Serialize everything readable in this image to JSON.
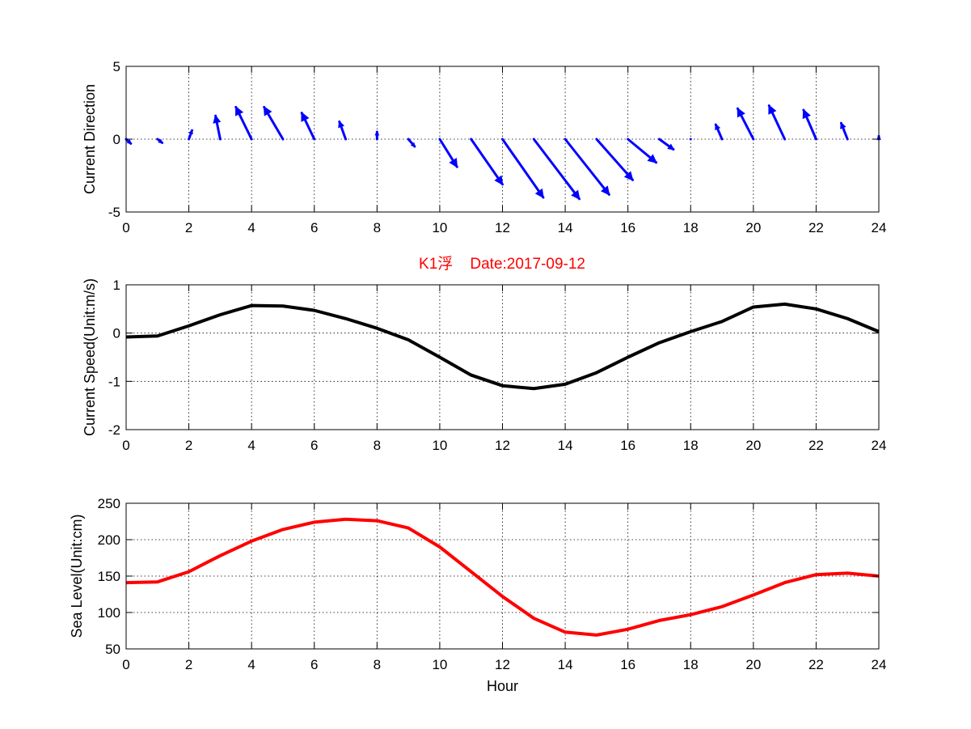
{
  "title": "K1浮    Date:2017-09-12",
  "title_color": "#ff0000",
  "chart_data": [
    {
      "type": "quiver",
      "ylabel": "Current Direction",
      "xlabel": "",
      "xlim": [
        0,
        24
      ],
      "ylim": [
        -5,
        5
      ],
      "xticks": [
        0,
        2,
        4,
        6,
        8,
        10,
        12,
        14,
        16,
        18,
        20,
        22,
        24
      ],
      "yticks": [
        -5,
        0,
        5
      ],
      "grid": true,
      "color": "#0000ff",
      "vectors": [
        {
          "x": 0,
          "u": 0.15,
          "v": -0.3
        },
        {
          "x": 1,
          "u": 0.15,
          "v": -0.25
        },
        {
          "x": 2,
          "u": 0.1,
          "v": 0.6
        },
        {
          "x": 3,
          "u": -0.15,
          "v": 1.6
        },
        {
          "x": 4,
          "u": -0.5,
          "v": 2.2
        },
        {
          "x": 5,
          "u": -0.6,
          "v": 2.2
        },
        {
          "x": 6,
          "u": -0.4,
          "v": 1.8
        },
        {
          "x": 7,
          "u": -0.2,
          "v": 1.2
        },
        {
          "x": 8,
          "u": 0.0,
          "v": 0.5
        },
        {
          "x": 9,
          "u": 0.2,
          "v": -0.5
        },
        {
          "x": 10,
          "u": 0.55,
          "v": -1.9
        },
        {
          "x": 11,
          "u": 1.0,
          "v": -3.1
        },
        {
          "x": 12,
          "u": 1.3,
          "v": -4.0
        },
        {
          "x": 13,
          "u": 1.45,
          "v": -4.1
        },
        {
          "x": 14,
          "u": 1.4,
          "v": -3.8
        },
        {
          "x": 15,
          "u": 1.15,
          "v": -2.8
        },
        {
          "x": 16,
          "u": 0.9,
          "v": -1.6
        },
        {
          "x": 17,
          "u": 0.45,
          "v": -0.7
        },
        {
          "x": 18,
          "u": 0.0,
          "v": 0.0
        },
        {
          "x": 19,
          "u": -0.2,
          "v": 1.0
        },
        {
          "x": 20,
          "u": -0.5,
          "v": 2.1
        },
        {
          "x": 21,
          "u": -0.5,
          "v": 2.3
        },
        {
          "x": 22,
          "u": -0.4,
          "v": 2.0
        },
        {
          "x": 23,
          "u": -0.2,
          "v": 1.1
        },
        {
          "x": 24,
          "u": 0.0,
          "v": 0.2
        }
      ]
    },
    {
      "type": "line",
      "ylabel": "Current Speed(Unit:m/s)",
      "xlabel": "",
      "xlim": [
        0,
        24
      ],
      "ylim": [
        -2,
        1
      ],
      "xticks": [
        0,
        2,
        4,
        6,
        8,
        10,
        12,
        14,
        16,
        18,
        20,
        22,
        24
      ],
      "yticks": [
        -2,
        -1,
        0,
        1
      ],
      "grid": true,
      "series": [
        {
          "color": "#000000",
          "x": [
            0,
            1,
            2,
            3,
            4,
            5,
            6,
            7,
            8,
            9,
            10,
            11,
            12,
            13,
            14,
            15,
            16,
            17,
            18,
            19,
            20,
            21,
            22,
            23,
            24
          ],
          "values": [
            -0.08,
            -0.06,
            0.15,
            0.38,
            0.57,
            0.56,
            0.47,
            0.3,
            0.1,
            -0.14,
            -0.5,
            -0.87,
            -1.09,
            -1.15,
            -1.06,
            -0.82,
            -0.5,
            -0.2,
            0.03,
            0.24,
            0.54,
            0.6,
            0.5,
            0.3,
            0.03
          ]
        }
      ]
    },
    {
      "type": "line",
      "ylabel": "Sea Level(Unit:cm)",
      "xlabel": "Hour",
      "xlim": [
        0,
        24
      ],
      "ylim": [
        50,
        250
      ],
      "xticks": [
        0,
        2,
        4,
        6,
        8,
        10,
        12,
        14,
        16,
        18,
        20,
        22,
        24
      ],
      "yticks": [
        50,
        100,
        150,
        200,
        250
      ],
      "grid": true,
      "series": [
        {
          "color": "#ff0000",
          "x": [
            0,
            1,
            2,
            3,
            4,
            5,
            6,
            7,
            8,
            9,
            10,
            11,
            12,
            13,
            14,
            15,
            16,
            17,
            18,
            19,
            20,
            21,
            22,
            23,
            24
          ],
          "values": [
            141,
            142,
            156,
            178,
            198,
            214,
            224,
            228,
            226,
            216,
            190,
            156,
            122,
            92,
            73,
            69,
            77,
            89,
            97,
            108,
            124,
            141,
            152,
            154,
            150
          ]
        }
      ]
    }
  ]
}
